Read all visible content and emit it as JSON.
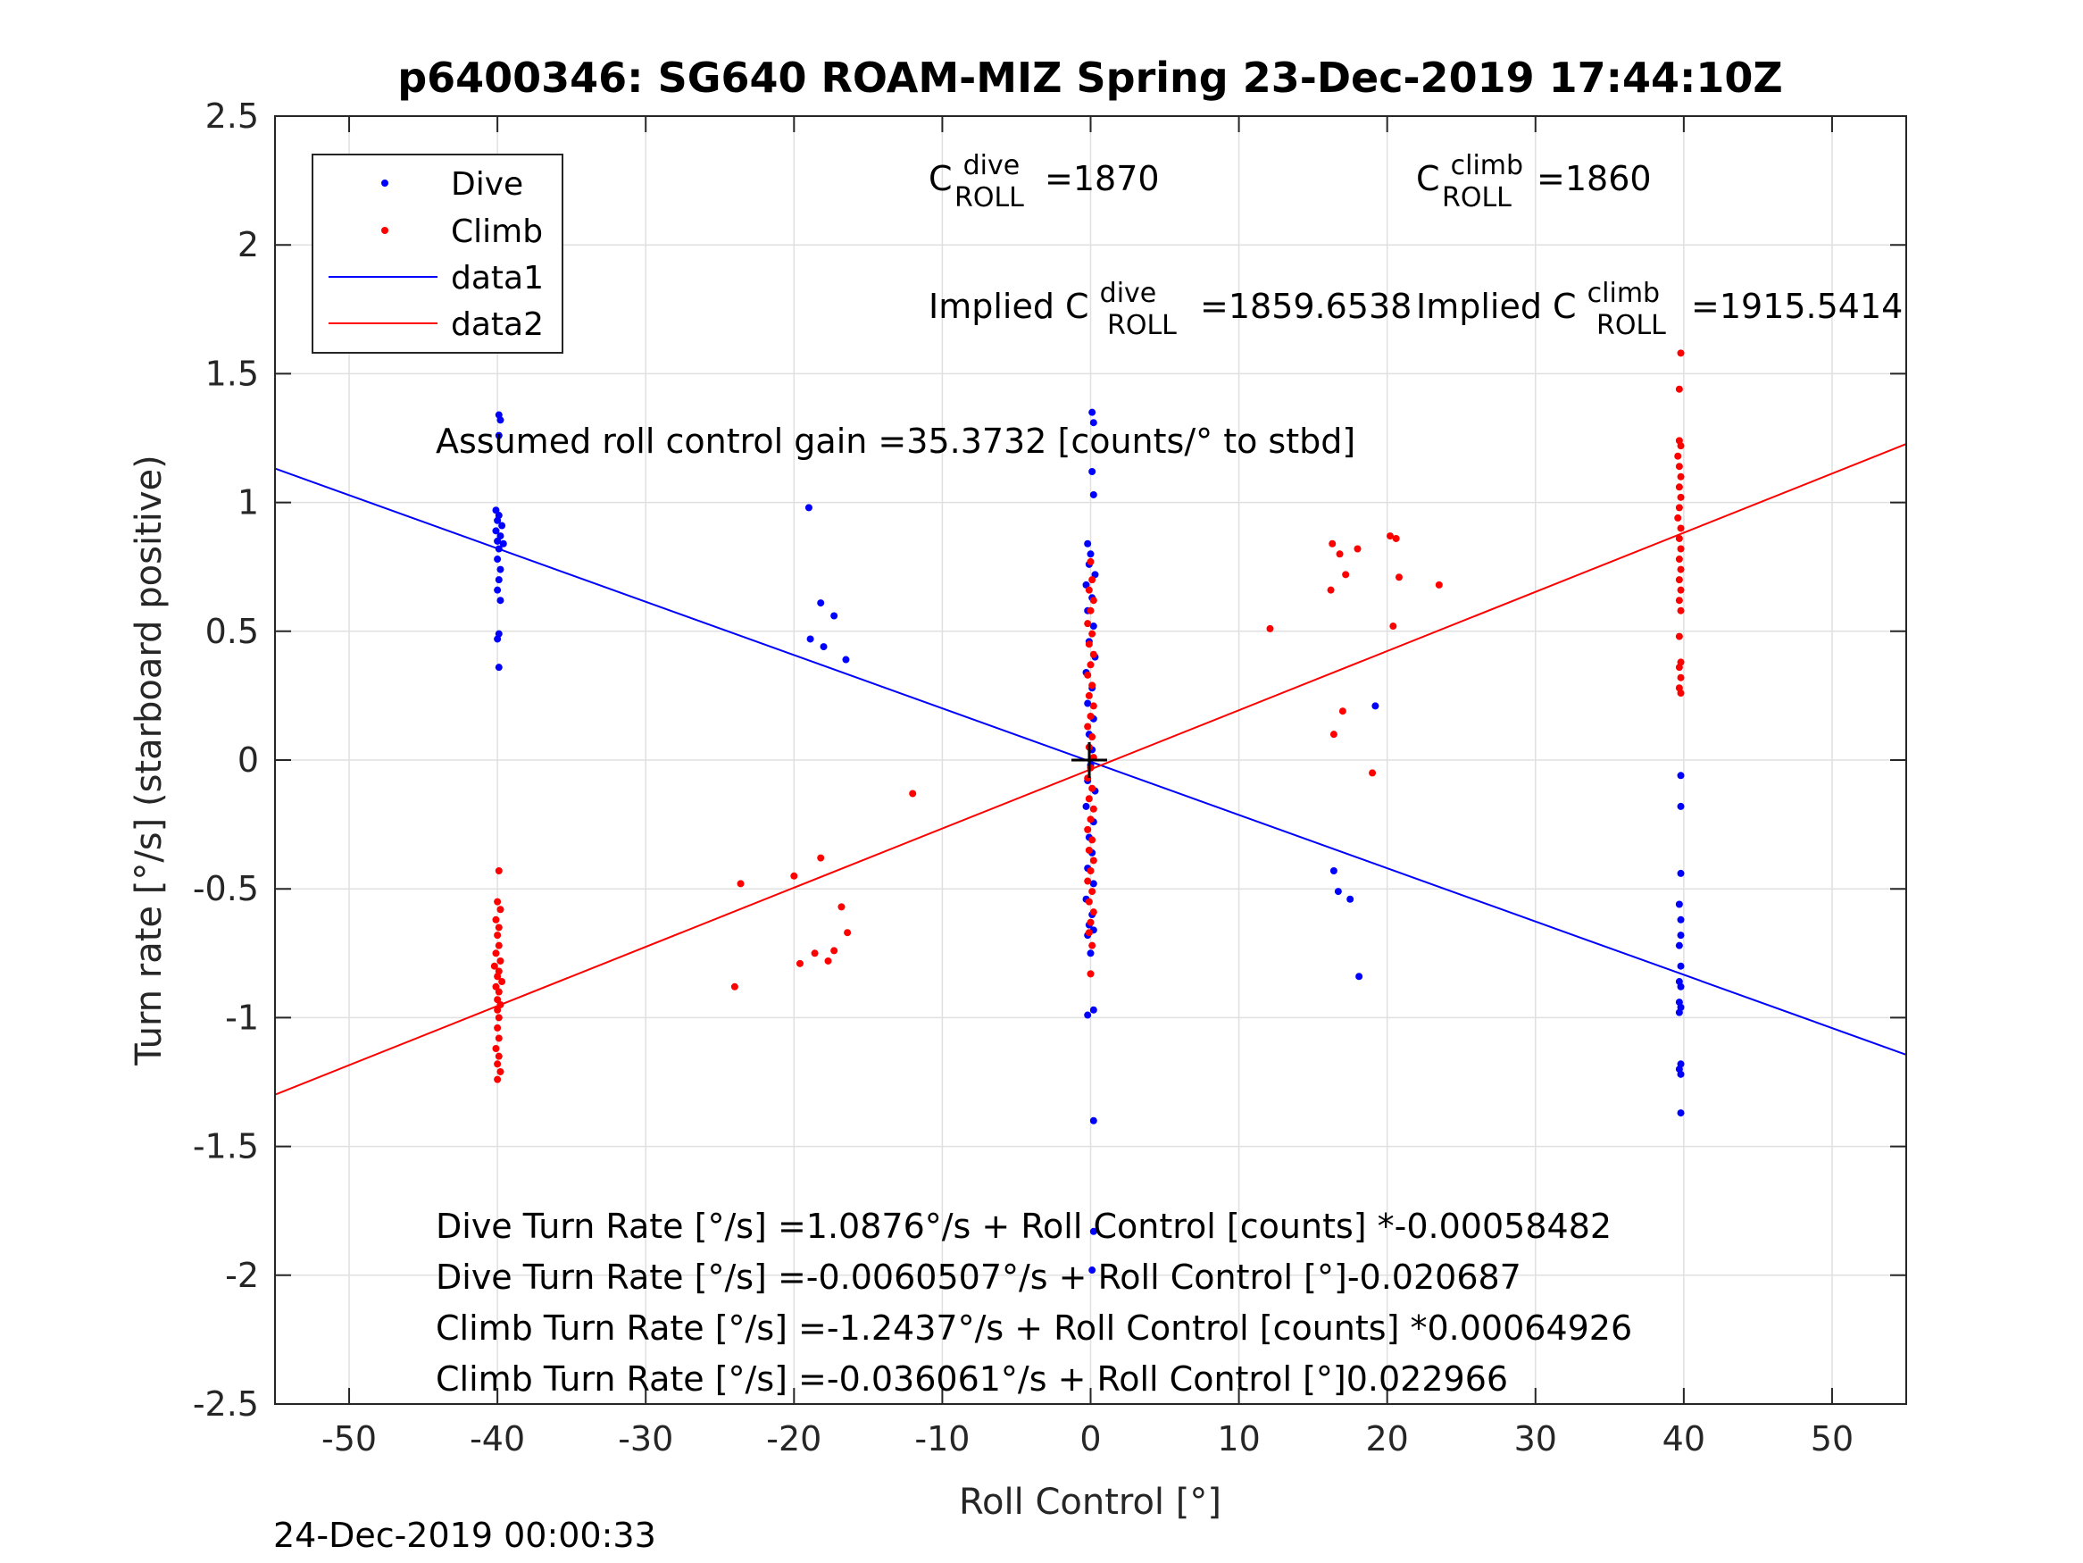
{
  "chart_data": {
    "type": "scatter",
    "title": "p6400346: SG640 ROAM-MIZ Spring 23-Dec-2019 17:44:10Z",
    "xlabel": "Roll Control [°]",
    "ylabel": "Turn rate [°/s] (starboard positive)",
    "xlim": [
      -55,
      55
    ],
    "ylim": [
      -2.5,
      2.5
    ],
    "xticks": [
      -50,
      -40,
      -30,
      -20,
      -10,
      0,
      10,
      20,
      30,
      40,
      50
    ],
    "xtick_labels": [
      "-50",
      "-40",
      "-30",
      "-20",
      "-10",
      "0",
      "10",
      "20",
      "30",
      "40",
      "50"
    ],
    "yticks": [
      -2.5,
      -2,
      -1.5,
      -1,
      -0.5,
      0,
      0.5,
      1,
      1.5,
      2,
      2.5
    ],
    "ytick_labels": [
      "-2.5",
      "-2",
      "-1.5",
      "-1",
      "-0.5",
      "0",
      "0.5",
      "1",
      "1.5",
      "2",
      "2.5"
    ],
    "grid": true,
    "legend_position": "top-left",
    "timestamp": "24-Dec-2019 00:00:33",
    "colors": {
      "dive": "#0000ff",
      "climb": "#ff0000"
    },
    "series": [
      {
        "name": "Dive",
        "style": "dots",
        "color": "#0000ff",
        "points": [
          [
            -39.9,
            1.34
          ],
          [
            -39.8,
            1.32
          ],
          [
            -39.9,
            1.26
          ],
          [
            -40.1,
            0.97
          ],
          [
            -39.9,
            0.95
          ],
          [
            -40.0,
            0.93
          ],
          [
            -39.7,
            0.91
          ],
          [
            -40.1,
            0.89
          ],
          [
            -39.8,
            0.87
          ],
          [
            -40.0,
            0.85
          ],
          [
            -39.6,
            0.84
          ],
          [
            -39.9,
            0.82
          ],
          [
            -40.0,
            0.78
          ],
          [
            -39.8,
            0.74
          ],
          [
            -39.9,
            0.7
          ],
          [
            -40.0,
            0.66
          ],
          [
            -39.8,
            0.62
          ],
          [
            -39.9,
            0.49
          ],
          [
            -40.0,
            0.47
          ],
          [
            -39.9,
            0.36
          ],
          [
            -19.0,
            0.98
          ],
          [
            -18.2,
            0.61
          ],
          [
            -17.3,
            0.56
          ],
          [
            -18.9,
            0.47
          ],
          [
            -18.0,
            0.44
          ],
          [
            -16.5,
            0.39
          ],
          [
            0.1,
            1.35
          ],
          [
            0.2,
            1.31
          ],
          [
            0.1,
            1.12
          ],
          [
            0.2,
            1.03
          ],
          [
            -0.2,
            0.84
          ],
          [
            0.0,
            0.8
          ],
          [
            -0.1,
            0.76
          ],
          [
            0.3,
            0.72
          ],
          [
            -0.3,
            0.68
          ],
          [
            0.1,
            0.63
          ],
          [
            -0.2,
            0.58
          ],
          [
            0.2,
            0.52
          ],
          [
            -0.1,
            0.46
          ],
          [
            0.3,
            0.4
          ],
          [
            -0.3,
            0.34
          ],
          [
            0.1,
            0.28
          ],
          [
            -0.2,
            0.22
          ],
          [
            0.2,
            0.16
          ],
          [
            -0.1,
            0.1
          ],
          [
            0.1,
            0.04
          ],
          [
            0.0,
            -0.02
          ],
          [
            -0.2,
            -0.08
          ],
          [
            0.3,
            -0.12
          ],
          [
            -0.3,
            -0.18
          ],
          [
            0.2,
            -0.24
          ],
          [
            -0.1,
            -0.3
          ],
          [
            0.1,
            -0.36
          ],
          [
            -0.2,
            -0.42
          ],
          [
            0.2,
            -0.48
          ],
          [
            -0.3,
            -0.54
          ],
          [
            0.1,
            -0.6
          ],
          [
            -0.1,
            -0.64
          ],
          [
            0.2,
            -0.66
          ],
          [
            -0.2,
            -0.68
          ],
          [
            0.0,
            -0.75
          ],
          [
            0.2,
            -0.97
          ],
          [
            -0.2,
            -0.99
          ],
          [
            0.2,
            -1.4
          ],
          [
            0.2,
            -1.83
          ],
          [
            0.1,
            -1.98
          ],
          [
            16.4,
            -0.43
          ],
          [
            16.7,
            -0.51
          ],
          [
            17.5,
            -0.54
          ],
          [
            18.1,
            -0.84
          ],
          [
            19.2,
            0.21
          ],
          [
            39.8,
            -0.06
          ],
          [
            39.8,
            -0.18
          ],
          [
            39.8,
            -0.44
          ],
          [
            39.7,
            -0.56
          ],
          [
            39.8,
            -0.62
          ],
          [
            39.8,
            -0.68
          ],
          [
            39.7,
            -0.72
          ],
          [
            39.8,
            -0.8
          ],
          [
            39.7,
            -0.86
          ],
          [
            39.8,
            -0.88
          ],
          [
            39.7,
            -0.94
          ],
          [
            39.8,
            -0.96
          ],
          [
            39.7,
            -0.98
          ],
          [
            39.8,
            -1.18
          ],
          [
            39.7,
            -1.2
          ],
          [
            39.8,
            -1.22
          ],
          [
            39.8,
            -1.37
          ]
        ]
      },
      {
        "name": "Climb",
        "style": "dots",
        "color": "#ff0000",
        "points": [
          [
            -39.9,
            -0.43
          ],
          [
            -40.0,
            -0.55
          ],
          [
            -39.8,
            -0.58
          ],
          [
            -40.1,
            -0.62
          ],
          [
            -39.9,
            -0.65
          ],
          [
            -40.0,
            -0.68
          ],
          [
            -39.9,
            -0.72
          ],
          [
            -40.1,
            -0.75
          ],
          [
            -39.8,
            -0.78
          ],
          [
            -40.2,
            -0.8
          ],
          [
            -39.9,
            -0.82
          ],
          [
            -40.0,
            -0.84
          ],
          [
            -39.7,
            -0.86
          ],
          [
            -40.1,
            -0.88
          ],
          [
            -39.9,
            -0.9
          ],
          [
            -40.0,
            -0.93
          ],
          [
            -39.8,
            -0.95
          ],
          [
            -40.0,
            -0.97
          ],
          [
            -39.9,
            -1.0
          ],
          [
            -40.0,
            -1.04
          ],
          [
            -39.9,
            -1.08
          ],
          [
            -40.1,
            -1.12
          ],
          [
            -39.9,
            -1.15
          ],
          [
            -40.0,
            -1.18
          ],
          [
            -39.8,
            -1.21
          ],
          [
            -40.0,
            -1.24
          ],
          [
            -24.0,
            -0.88
          ],
          [
            -23.6,
            -0.48
          ],
          [
            -20.0,
            -0.45
          ],
          [
            -19.6,
            -0.79
          ],
          [
            -18.6,
            -0.75
          ],
          [
            -17.7,
            -0.78
          ],
          [
            -17.3,
            -0.74
          ],
          [
            -18.2,
            -0.38
          ],
          [
            -16.8,
            -0.57
          ],
          [
            -16.4,
            -0.67
          ],
          [
            -12.0,
            -0.13
          ],
          [
            0.0,
            0.77
          ],
          [
            0.1,
            0.7
          ],
          [
            -0.1,
            0.66
          ],
          [
            0.2,
            0.62
          ],
          [
            0.0,
            0.58
          ],
          [
            -0.2,
            0.53
          ],
          [
            0.1,
            0.49
          ],
          [
            -0.1,
            0.45
          ],
          [
            0.2,
            0.41
          ],
          [
            0.0,
            0.37
          ],
          [
            -0.2,
            0.33
          ],
          [
            0.1,
            0.29
          ],
          [
            -0.1,
            0.25
          ],
          [
            0.2,
            0.21
          ],
          [
            0.0,
            0.17
          ],
          [
            -0.2,
            0.13
          ],
          [
            0.1,
            0.09
          ],
          [
            -0.1,
            0.05
          ],
          [
            0.2,
            0.01
          ],
          [
            0.0,
            -0.03
          ],
          [
            -0.2,
            -0.07
          ],
          [
            0.1,
            -0.11
          ],
          [
            -0.1,
            -0.15
          ],
          [
            0.2,
            -0.19
          ],
          [
            0.0,
            -0.23
          ],
          [
            -0.2,
            -0.27
          ],
          [
            0.1,
            -0.31
          ],
          [
            -0.1,
            -0.35
          ],
          [
            0.2,
            -0.39
          ],
          [
            0.0,
            -0.43
          ],
          [
            -0.2,
            -0.47
          ],
          [
            0.1,
            -0.51
          ],
          [
            -0.1,
            -0.55
          ],
          [
            0.2,
            -0.59
          ],
          [
            0.0,
            -0.63
          ],
          [
            -0.1,
            -0.67
          ],
          [
            0.1,
            -0.72
          ],
          [
            0.0,
            -0.83
          ],
          [
            12.1,
            0.51
          ],
          [
            16.3,
            0.84
          ],
          [
            16.8,
            0.8
          ],
          [
            17.2,
            0.72
          ],
          [
            18.0,
            0.82
          ],
          [
            16.2,
            0.66
          ],
          [
            20.2,
            0.87
          ],
          [
            20.6,
            0.86
          ],
          [
            20.8,
            0.71
          ],
          [
            23.5,
            0.68
          ],
          [
            20.4,
            0.52
          ],
          [
            17.0,
            0.19
          ],
          [
            16.4,
            0.1
          ],
          [
            19.0,
            -0.05
          ],
          [
            39.8,
            1.58
          ],
          [
            39.7,
            1.44
          ],
          [
            39.7,
            1.24
          ],
          [
            39.8,
            1.22
          ],
          [
            39.6,
            1.18
          ],
          [
            39.7,
            1.14
          ],
          [
            39.8,
            1.1
          ],
          [
            39.7,
            1.06
          ],
          [
            39.8,
            1.02
          ],
          [
            39.7,
            0.98
          ],
          [
            39.6,
            0.94
          ],
          [
            39.8,
            0.9
          ],
          [
            39.7,
            0.86
          ],
          [
            39.8,
            0.82
          ],
          [
            39.7,
            0.78
          ],
          [
            39.8,
            0.74
          ],
          [
            39.7,
            0.7
          ],
          [
            39.8,
            0.66
          ],
          [
            39.7,
            0.62
          ],
          [
            39.8,
            0.58
          ],
          [
            39.7,
            0.48
          ],
          [
            39.8,
            0.38
          ],
          [
            39.7,
            0.36
          ],
          [
            39.8,
            0.32
          ],
          [
            39.7,
            0.28
          ],
          [
            39.8,
            0.26
          ]
        ]
      },
      {
        "name": "data1",
        "style": "line",
        "color": "#0000ff",
        "intercept": -0.0060507,
        "slope": -0.020687
      },
      {
        "name": "data2",
        "style": "line",
        "color": "#ff0000",
        "intercept": -0.036061,
        "slope": 0.022966
      }
    ],
    "annotations": {
      "c_roll_dive": {
        "base": "C",
        "sup": "dive",
        "sub": "ROLL",
        "value": "=1870"
      },
      "c_roll_climb": {
        "base": "C",
        "sup": "climb",
        "sub": "ROLL",
        "value": "=1860"
      },
      "implied_dive": {
        "base": "Implied C",
        "sup": "dive",
        "sub": "ROLL",
        "value": "=1859.6538"
      },
      "implied_climb": {
        "base": "Implied C",
        "sup": "climb",
        "sub": "ROLL",
        "value": "=1915.5414"
      },
      "gain": "Assumed roll control gain =35.3732 [counts/° to stbd]",
      "equations": [
        "Dive Turn Rate [°/s] =1.0876°/s + Roll Control [counts] *-0.00058482",
        "Dive Turn Rate [°/s] =-0.0060507°/s + Roll Control [°]-0.020687",
        "Climb Turn Rate [°/s] =-1.2437°/s + Roll Control [counts] *0.00064926",
        "Climb Turn Rate [°/s] =-0.036061°/s + Roll Control [°]0.022966"
      ]
    }
  }
}
